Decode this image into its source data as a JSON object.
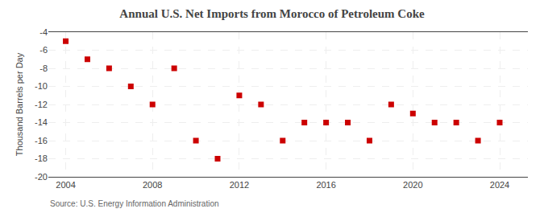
{
  "chart_data": {
    "type": "scatter",
    "title": "Annual U.S. Net Imports from Morocco of Petroleum Coke",
    "ylabel": "Thousand Barrels per Day",
    "annotations": [
      "Source: U.S. Energy Information Administration"
    ],
    "x": [
      2004,
      2005,
      2006,
      2007,
      2008,
      2009,
      2010,
      2011,
      2012,
      2013,
      2014,
      2015,
      2016,
      2017,
      2018,
      2019,
      2020,
      2021,
      2022,
      2023,
      2024
    ],
    "values": [
      -5.0,
      -7.0,
      -8.0,
      -10.0,
      -12.0,
      -8.0,
      -16.0,
      -18.0,
      -11.0,
      -12.0,
      -16.0,
      -14.0,
      -14.0,
      -14.0,
      -16.0,
      -12.0,
      -13.0,
      -14.0,
      -14.0,
      -16.0,
      -14.0
    ],
    "color": "#cc0000",
    "marker": "square",
    "xlim": [
      2003.2,
      2025.3
    ],
    "xticks": [
      2004,
      2008,
      2012,
      2016,
      2020,
      2024
    ],
    "ylim": [
      -20,
      -4
    ],
    "yticks": [
      -4,
      -6,
      -8,
      -10,
      -12,
      -14,
      -16,
      -18,
      -20
    ],
    "grid": true
  }
}
